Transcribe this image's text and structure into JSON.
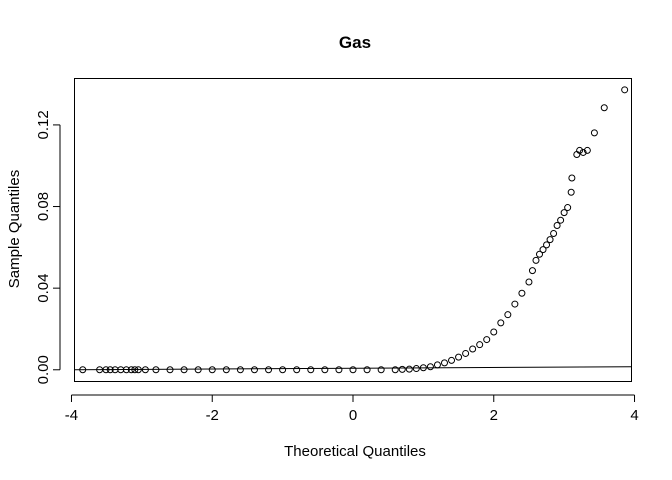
{
  "chart_data": {
    "type": "scatter",
    "title": "Gas",
    "xlabel": "Theoretical Quantiles",
    "ylabel": "Sample Quantiles",
    "xlim": [
      -3.95,
      3.95
    ],
    "ylim": [
      -0.0055,
      0.1425
    ],
    "x_ticks": [
      -4,
      -2,
      0,
      2,
      4
    ],
    "x_tick_labels": [
      "-4",
      "-2",
      "0",
      "2",
      "4"
    ],
    "y_ticks": [
      0.0,
      0.04,
      0.08,
      0.12
    ],
    "y_tick_labels": [
      "0.00",
      "0.04",
      "0.08",
      "0.12"
    ],
    "grid": false,
    "marker": "open-circle",
    "reference_line": {
      "x": [
        -3.95,
        3.95
      ],
      "y": [
        0.0,
        0.0015
      ]
    },
    "points": [
      [
        -3.84,
        0.0
      ],
      [
        -3.6,
        0.0
      ],
      [
        -3.51,
        0.0
      ],
      [
        -3.45,
        0.0
      ],
      [
        -3.38,
        0.0
      ],
      [
        -3.3,
        0.0
      ],
      [
        -3.22,
        0.0
      ],
      [
        -3.15,
        0.0
      ],
      [
        -3.1,
        0.0
      ],
      [
        -3.05,
        0.0
      ],
      [
        -2.95,
        0.0
      ],
      [
        -2.8,
        0.0
      ],
      [
        -2.6,
        0.0
      ],
      [
        -2.4,
        0.0
      ],
      [
        -2.2,
        0.0
      ],
      [
        -2.0,
        0.0
      ],
      [
        -1.8,
        0.0
      ],
      [
        -1.6,
        0.0
      ],
      [
        -1.4,
        0.0
      ],
      [
        -1.2,
        0.0
      ],
      [
        -1.0,
        0.0
      ],
      [
        -0.8,
        0.0
      ],
      [
        -0.6,
        0.0
      ],
      [
        -0.4,
        0.0
      ],
      [
        -0.2,
        0.0
      ],
      [
        0.0,
        0.0
      ],
      [
        0.2,
        0.0
      ],
      [
        0.4,
        0.0
      ],
      [
        0.6,
        0.0
      ],
      [
        0.7,
        0.0002
      ],
      [
        0.8,
        0.0003
      ],
      [
        0.9,
        0.0006
      ],
      [
        1.0,
        0.001
      ],
      [
        1.1,
        0.0015
      ],
      [
        1.2,
        0.0024
      ],
      [
        1.3,
        0.0034
      ],
      [
        1.4,
        0.0046
      ],
      [
        1.5,
        0.0062
      ],
      [
        1.6,
        0.008
      ],
      [
        1.7,
        0.0102
      ],
      [
        1.8,
        0.0123
      ],
      [
        1.9,
        0.0148
      ],
      [
        2.0,
        0.0185
      ],
      [
        2.1,
        0.023
      ],
      [
        2.2,
        0.027
      ],
      [
        2.3,
        0.0322
      ],
      [
        2.4,
        0.0375
      ],
      [
        2.5,
        0.043
      ],
      [
        2.55,
        0.0486
      ],
      [
        2.6,
        0.0536
      ],
      [
        2.65,
        0.0566
      ],
      [
        2.7,
        0.0589
      ],
      [
        2.75,
        0.0612
      ],
      [
        2.8,
        0.0638
      ],
      [
        2.85,
        0.0668
      ],
      [
        2.9,
        0.0707
      ],
      [
        2.95,
        0.0733
      ],
      [
        3.0,
        0.077
      ],
      [
        3.05,
        0.0795
      ],
      [
        3.1,
        0.087
      ],
      [
        3.11,
        0.094
      ],
      [
        3.18,
        0.1055
      ],
      [
        3.22,
        0.1075
      ],
      [
        3.27,
        0.1065
      ],
      [
        3.33,
        0.1075
      ],
      [
        3.43,
        0.1161
      ],
      [
        3.57,
        0.1284
      ],
      [
        3.86,
        0.1372
      ]
    ]
  }
}
